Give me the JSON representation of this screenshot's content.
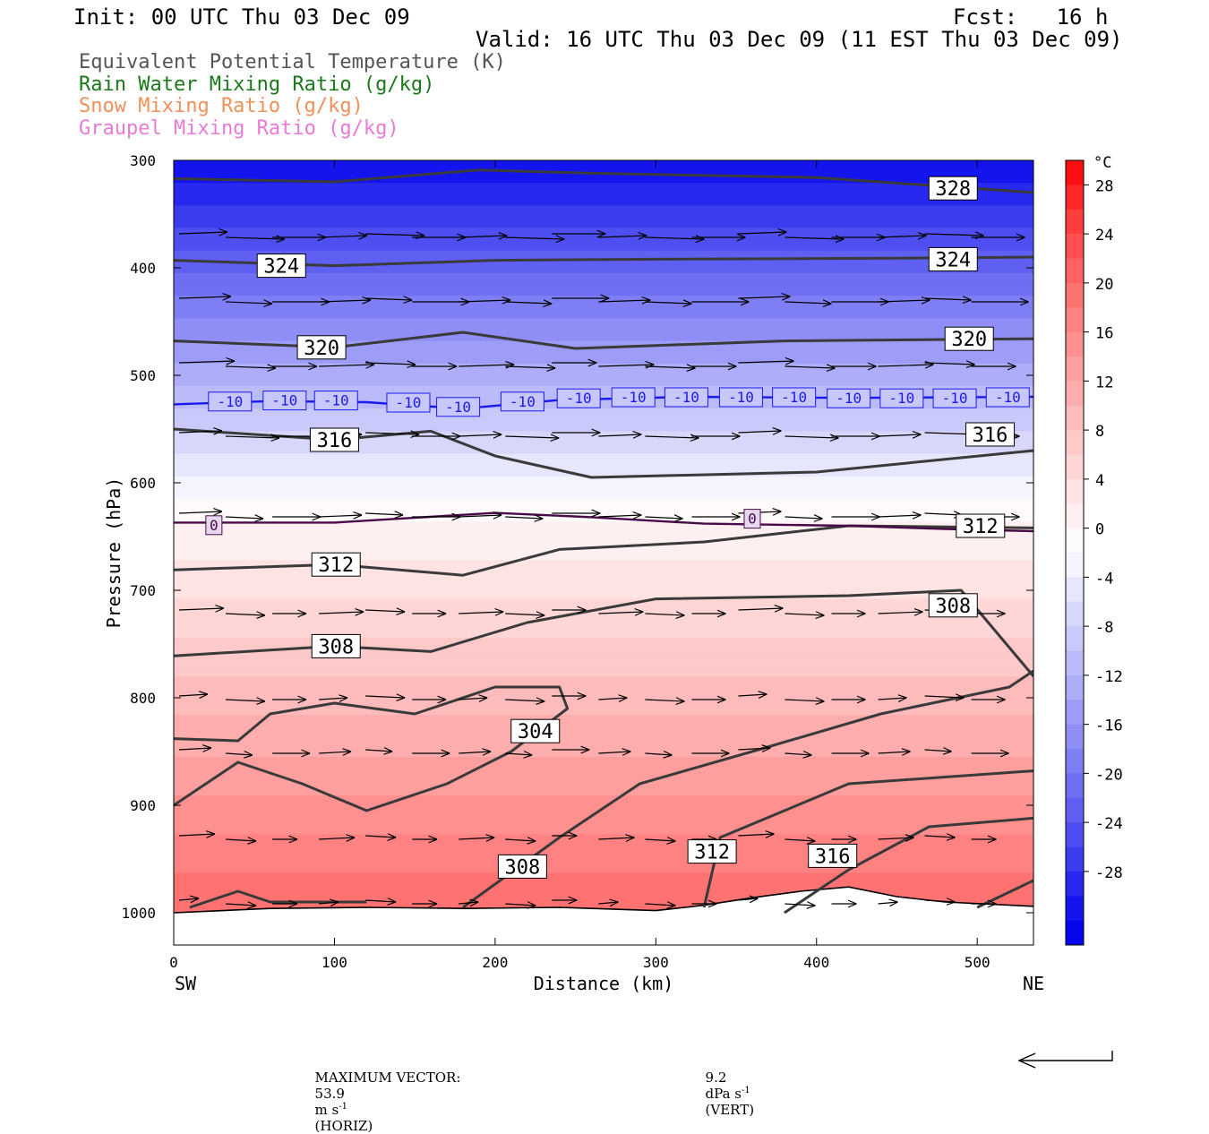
{
  "header": {
    "init": "Init: 00 UTC Thu 03 Dec 09",
    "fcst": "Fcst:   16 h",
    "valid": "Valid: 16 UTC Thu 03 Dec 09 (11 EST Thu 03 Dec 09)"
  },
  "legend": [
    {
      "label": "Equivalent Potential Temperature (K)",
      "color": "#555555"
    },
    {
      "label": "Rain Water Mixing Ratio (g/kg)",
      "color": "#1a7a1a"
    },
    {
      "label": "Snow Mixing Ratio (g/kg)",
      "color": "#f0905a"
    },
    {
      "label": "Graupel Mixing Ratio (g/kg)",
      "color": "#e87ad8"
    }
  ],
  "footer": {
    "max_vector_label": "MAXIMUM VECTOR:",
    "horiz_value": "53.9",
    "horiz_unit": "m s",
    "horiz_exp": "-1",
    "horiz_tag": "(HORIZ)",
    "vert_value": "9.2",
    "vert_unit": "dPa s",
    "vert_exp": "-1",
    "vert_tag": "(VERT)"
  },
  "chart_data": {
    "type": "cross-section",
    "xlabel": "Distance (km)",
    "ylabel": "Pressure (hPa)",
    "x_range": [
      0,
      535
    ],
    "y_range": [
      300,
      1030
    ],
    "y_scale": "linear, reversed",
    "x_ticks": [
      0,
      100,
      200,
      300,
      400,
      500
    ],
    "y_ticks": [
      300,
      400,
      500,
      600,
      700,
      800,
      900,
      1000
    ],
    "left_end_label": "SW",
    "right_end_label": "NE",
    "colorbar": {
      "unit": "°C",
      "tick_labels": [
        28,
        24,
        20,
        16,
        12,
        8,
        4,
        0,
        -4,
        -8,
        -12,
        -16,
        -20,
        -24,
        -28
      ],
      "levels_top_to_bottom": [
        30,
        28,
        26,
        24,
        22,
        20,
        18,
        16,
        14,
        12,
        10,
        8,
        6,
        4,
        2,
        0,
        -2,
        -4,
        -6,
        -8,
        -10,
        -12,
        -14,
        -16,
        -18,
        -20,
        -22,
        -24,
        -26,
        -28,
        -30,
        -32
      ],
      "colors_top_to_bottom": [
        "#fe0f0f",
        "#fe2828",
        "#fe3d3d",
        "#fe5050",
        "#fe6262",
        "#fe7272",
        "#fe8282",
        "#fe9090",
        "#fd9f9f",
        "#fdadad",
        "#fdbbbb",
        "#fdc9c9",
        "#fed6d6",
        "#fee3e3",
        "#fef0f0",
        "#fefafa",
        "#f4f4fe",
        "#e6e6fc",
        "#d7d7fb",
        "#c9c9fb",
        "#bbbbfa",
        "#adadf9",
        "#9d9df8",
        "#8e8ef6",
        "#7f7ff5",
        "#6f6ff3",
        "#5f5ff2",
        "#4f4ff1",
        "#3c3cef",
        "#2828ef",
        "#1414ef",
        "#0505ee"
      ]
    },
    "theta_e_labels": [
      {
        "text": "328",
        "x": 485,
        "p": 326
      },
      {
        "text": "324",
        "x": 67,
        "p": 398
      },
      {
        "text": "324",
        "x": 485,
        "p": 392
      },
      {
        "text": "320",
        "x": 92,
        "p": 474
      },
      {
        "text": "320",
        "x": 495,
        "p": 466
      },
      {
        "text": "316",
        "x": 100,
        "p": 560
      },
      {
        "text": "316",
        "x": 508,
        "p": 555
      },
      {
        "text": "312",
        "x": 101,
        "p": 676
      },
      {
        "text": "312",
        "x": 502,
        "p": 640
      },
      {
        "text": "308",
        "x": 101,
        "p": 752
      },
      {
        "text": "308",
        "x": 485,
        "p": 714
      },
      {
        "text": "304",
        "x": 225,
        "p": 831
      },
      {
        "text": "308",
        "x": 217,
        "p": 957
      },
      {
        "text": "312",
        "x": 335,
        "p": 943
      },
      {
        "text": "316",
        "x": 410,
        "p": 947
      }
    ],
    "temp_labels": [
      {
        "text": "-10",
        "x": 35,
        "p": 524
      },
      {
        "text": "-10",
        "x": 69,
        "p": 523
      },
      {
        "text": "-10",
        "x": 101,
        "p": 523
      },
      {
        "text": "-10",
        "x": 146,
        "p": 525
      },
      {
        "text": "-10",
        "x": 177,
        "p": 529
      },
      {
        "text": "-10",
        "x": 217,
        "p": 524
      },
      {
        "text": "-10",
        "x": 252,
        "p": 521
      },
      {
        "text": "-10",
        "x": 286,
        "p": 520
      },
      {
        "text": "-10",
        "x": 319,
        "p": 520
      },
      {
        "text": "-10",
        "x": 353,
        "p": 520
      },
      {
        "text": "-10",
        "x": 386,
        "p": 520
      },
      {
        "text": "-10",
        "x": 420,
        "p": 521
      },
      {
        "text": "-10",
        "x": 453,
        "p": 521
      },
      {
        "text": "-10",
        "x": 486,
        "p": 521
      },
      {
        "text": "-10",
        "x": 519,
        "p": 520
      },
      {
        "text": "0",
        "x": 25,
        "p": 639
      },
      {
        "text": "0",
        "x": 360,
        "p": 633
      }
    ]
  }
}
